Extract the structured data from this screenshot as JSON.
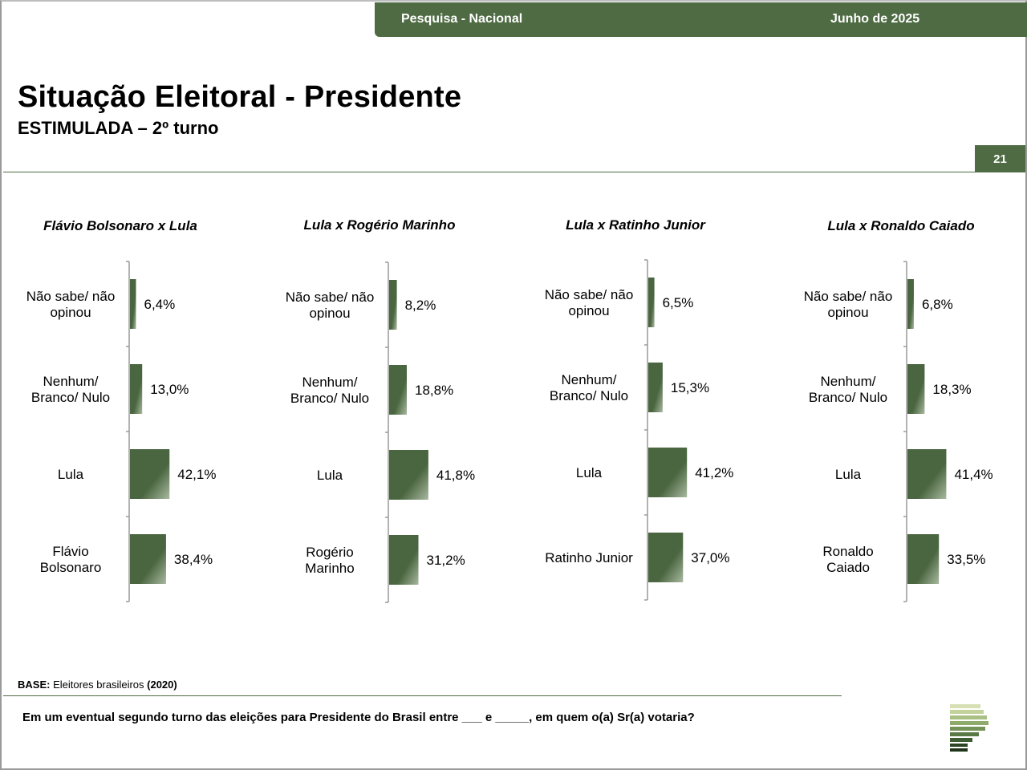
{
  "header": {
    "survey_label": "Pesquisa - Nacional",
    "date_label": "Junho de 2025",
    "title": "Situação Eleitoral - Presidente",
    "subtitle": "ESTIMULADA – 2º turno",
    "page_number": "21"
  },
  "footer": {
    "base_label": "BASE:",
    "base_text": "Eleitores brasileiros",
    "base_count": "(2020)",
    "question": "Em um eventual segundo turno das eleições para Presidente do Brasil entre ___ e _____, em quem o(a) Sr(a) votaria?"
  },
  "colors": {
    "accent": "#4f6b43",
    "bar": "#4a6640",
    "bar_light": "#a9b9a0"
  },
  "chart_data": [
    {
      "type": "bar",
      "orientation": "horizontal",
      "title": "Flávio Bolsonaro x Lula",
      "categories": [
        "Não sabe/ não opinou",
        "Nenhum/ Branco/ Nulo",
        "Lula",
        "Flávio Bolsonaro"
      ],
      "values": [
        6.4,
        13.0,
        42.1,
        38.4
      ],
      "value_labels": [
        "6,4%",
        "13,0%",
        "42,1%",
        "38,4%"
      ]
    },
    {
      "type": "bar",
      "orientation": "horizontal",
      "title": "Lula x Rogério Marinho",
      "categories": [
        "Não sabe/ não opinou",
        "Nenhum/ Branco/ Nulo",
        "Lula",
        "Rogério Marinho"
      ],
      "values": [
        8.2,
        18.8,
        41.8,
        31.2
      ],
      "value_labels": [
        "8,2%",
        "18,8%",
        "41,8%",
        "31,2%"
      ]
    },
    {
      "type": "bar",
      "orientation": "horizontal",
      "title": "Lula x Ratinho Junior",
      "categories": [
        "Não sabe/ não opinou",
        "Nenhum/ Branco/ Nulo",
        "Lula",
        "Ratinho Junior"
      ],
      "values": [
        6.5,
        15.3,
        41.2,
        37.0
      ],
      "value_labels": [
        "6,5%",
        "15,3%",
        "41,2%",
        "37,0%"
      ]
    },
    {
      "type": "bar",
      "orientation": "horizontal",
      "title": "Lula x Ronaldo Caiado",
      "categories": [
        "Não sabe/ não opinou",
        "Nenhum/ Branco/ Nulo",
        "Lula",
        "Ronaldo Caiado"
      ],
      "values": [
        6.8,
        18.3,
        41.4,
        33.5
      ],
      "value_labels": [
        "6,8%",
        "18,3%",
        "41,4%",
        "33,5%"
      ]
    }
  ]
}
